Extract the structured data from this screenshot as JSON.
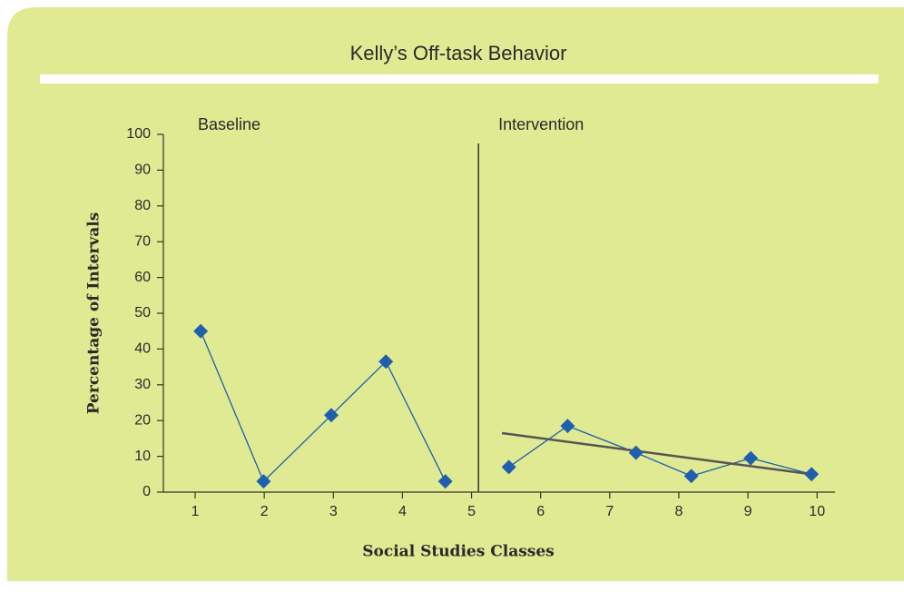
{
  "chart_data": {
    "type": "line",
    "title": "Kelly’s Off-task Behavior",
    "x_label": "Social Studies Classes",
    "y_label": "Percentage of Intervals",
    "xlim": [
      0.54,
      10.26
    ],
    "xticks": [
      1,
      2,
      3,
      4,
      5,
      6,
      7,
      8,
      9,
      10
    ],
    "ylim": [
      0,
      100
    ],
    "yticks": [
      0,
      10,
      20,
      30,
      40,
      50,
      60,
      70,
      80,
      90,
      100
    ],
    "phase_change_x": 5.1,
    "series": [
      {
        "name": "Baseline",
        "color": "#1f5fae",
        "x": [
          1.08,
          1.99,
          2.97,
          3.76,
          4.62
        ],
        "values": [
          45,
          3,
          21.5,
          36.5,
          3
        ]
      },
      {
        "name": "Intervention",
        "color": "#1f5fae",
        "x": [
          5.54,
          6.39,
          7.38,
          8.18,
          9.04,
          9.92
        ],
        "values": [
          7,
          18.5,
          11,
          4.5,
          9.5,
          5
        ]
      }
    ],
    "trend": {
      "color": "#555555",
      "x": [
        5.44,
        9.92
      ],
      "values": [
        16.5,
        5
      ]
    }
  }
}
